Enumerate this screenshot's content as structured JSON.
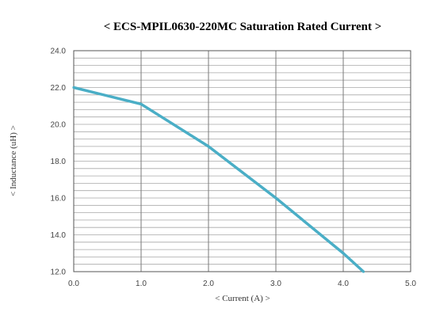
{
  "chart_data": {
    "type": "line",
    "title": "< ECS-MPIL0630-220MC  Saturation  Rated Current  >",
    "xlabel": "< Current (A) >",
    "ylabel": "< Inductance (uH) >",
    "xlim": [
      0,
      5
    ],
    "ylim": [
      12,
      24
    ],
    "xticks": [
      "0.0",
      "1.0",
      "2.0",
      "3.0",
      "4.0",
      "5.0"
    ],
    "yticks": [
      "12.0",
      "14.0",
      "16.0",
      "18.0",
      "20.0",
      "22.0",
      "24.0"
    ],
    "x_major_step": 1,
    "y_minor_step": 0.4,
    "grid": true,
    "series": [
      {
        "color": "#4aaec6",
        "x": [
          0.0,
          1.0,
          2.0,
          3.0,
          4.0,
          4.3
        ],
        "y": [
          22.0,
          21.1,
          18.8,
          16.0,
          13.0,
          12.0
        ]
      }
    ]
  }
}
